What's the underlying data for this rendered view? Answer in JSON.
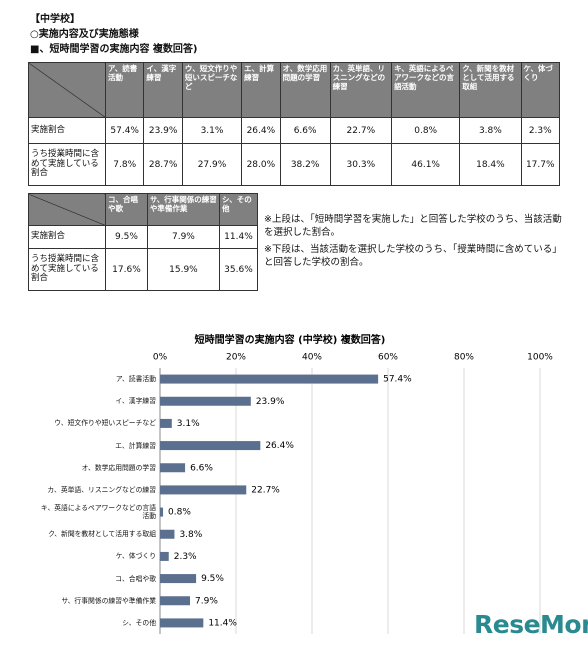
{
  "header": {
    "school": "【中学校】",
    "section": "○実施内容及び実施態様",
    "subsection": "■、短時間学習の実施内容 複数回答)"
  },
  "tables": [
    {
      "header": [
        "ア、読書活動",
        "イ、漢字練習",
        "ウ、短文作りや短いスピーチなど",
        "エ、計算練習",
        "オ、数学応用問題の学習",
        "カ、英単語、リスニングなどの練習",
        "キ、英語によるペアワークなどの言語活動",
        "ク、新聞を教材として活用する取組",
        "ケ、体づくり"
      ],
      "rows": [
        {
          "label": "実施割合",
          "cells": [
            "57.4%",
            "23.9%",
            "3.1%",
            "26.4%",
            "6.6%",
            "22.7%",
            "0.8%",
            "3.8%",
            "2.3%"
          ]
        },
        {
          "label": "うち授業時間に含めて実施している割合",
          "cells": [
            "7.8%",
            "28.7%",
            "27.9%",
            "28.0%",
            "38.2%",
            "30.3%",
            "46.1%",
            "18.4%",
            "17.7%"
          ]
        }
      ]
    },
    {
      "header": [
        "コ、合唱や歌",
        "サ、行事関係の練習や準備作業",
        "シ、その他"
      ],
      "rows": [
        {
          "label": "実施割合",
          "cells": [
            "9.5%",
            "7.9%",
            "11.4%"
          ]
        },
        {
          "label": "うち授業時間に含めて実施している割合",
          "cells": [
            "17.6%",
            "15.9%",
            "35.6%"
          ]
        }
      ]
    }
  ],
  "notes": [
    "※上段は、「短時間学習を実施した」と回答した学校のうち、当該活動を選択した割合。",
    "※下段は、当該活動を選択した学校のうち、「授業時間に含めている」と回答した学校の割合。"
  ],
  "chart_data": {
    "type": "bar",
    "orientation": "horizontal",
    "title": "短時間学習の実施内容 (中学校) 複数回答)",
    "categories": [
      "ア、読書活動",
      "イ、漢字練習",
      "ウ、短文作りや短いスピーチなど",
      "エ、計算練習",
      "オ、数学応用問題の学習",
      "カ、英単語、リスニングなどの練習",
      "キ、英語によるペアワークなどの言語活動",
      "ク、新聞を教材として活用する取組",
      "ケ、体づくり",
      "コ、合唱や歌",
      "サ、行事関係の練習や準備作業",
      "シ、その他"
    ],
    "values": [
      57.4,
      23.9,
      3.1,
      26.4,
      6.6,
      22.7,
      0.8,
      3.8,
      2.3,
      9.5,
      7.9,
      11.4
    ],
    "value_labels": [
      "57.4%",
      "23.9%",
      "3.1%",
      "26.4%",
      "6.6%",
      "22.7%",
      "0.8%",
      "3.8%",
      "2.3%",
      "9.5%",
      "7.9%",
      "11.4%"
    ],
    "color": "#5b6f8e",
    "xlim": [
      0,
      100
    ],
    "xticks": [
      {
        "value": 0,
        "label": "0%"
      },
      {
        "value": 20,
        "label": "20%"
      },
      {
        "value": 40,
        "label": "40%"
      },
      {
        "value": 60,
        "label": "60%"
      },
      {
        "value": 80,
        "label": "80%"
      },
      {
        "value": 100,
        "label": "100%"
      }
    ],
    "grid": true
  },
  "watermark": "ReseMom"
}
